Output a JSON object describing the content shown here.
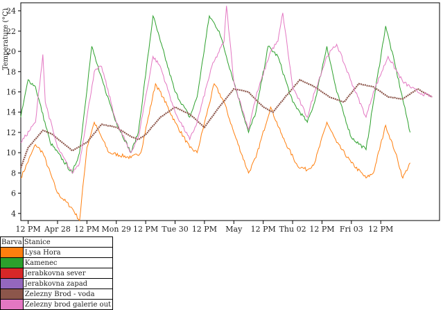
{
  "chart_data": {
    "type": "line",
    "title": "",
    "xlabel": "",
    "ylabel": "Temperature (°C)",
    "ylim": [
      3.3,
      24.8
    ],
    "yticks": [
      4,
      6,
      8,
      10,
      12,
      14,
      16,
      18,
      20,
      22,
      24
    ],
    "xlim": [
      "2013-04-27T09:00",
      "2013-05-04T12:00"
    ],
    "xticks": [
      {
        "t": "2013-04-27T12:00",
        "label": "12 PM"
      },
      {
        "t": "2013-04-28T00:00",
        "label": "Apr 28"
      },
      {
        "t": "2013-04-28T12:00",
        "label": "12 PM"
      },
      {
        "t": "2013-04-29T00:00",
        "label": "Mon 29"
      },
      {
        "t": "2013-04-29T12:00",
        "label": "12 PM"
      },
      {
        "t": "2013-04-30T00:00",
        "label": "Tue 30"
      },
      {
        "t": "2013-04-30T12:00",
        "label": "12 PM"
      },
      {
        "t": "2013-05-01T00:00",
        "label": "May"
      },
      {
        "t": "2013-05-01T12:00",
        "label": "12 PM"
      },
      {
        "t": "2013-05-02T00:00",
        "label": "Thu 02"
      },
      {
        "t": "2013-05-02T12:00",
        "label": "12 PM"
      },
      {
        "t": "2013-05-03T00:00",
        "label": "Fri 03"
      },
      {
        "t": "2013-05-03T12:00",
        "label": "12 PM"
      }
    ],
    "series": [
      {
        "name": "Lysa Hora",
        "color": "#ff7f0e",
        "points": [
          [
            "2013-04-27T09:00",
            7.5
          ],
          [
            "2013-04-27T15:00",
            10.8
          ],
          [
            "2013-04-27T18:00",
            10.0
          ],
          [
            "2013-04-28T00:00",
            6.0
          ],
          [
            "2013-04-28T06:00",
            4.5
          ],
          [
            "2013-04-28T09:00",
            3.3
          ],
          [
            "2013-04-28T12:00",
            10.5
          ],
          [
            "2013-04-28T15:00",
            13.0
          ],
          [
            "2013-04-28T21:00",
            10.0
          ],
          [
            "2013-04-29T06:00",
            9.5
          ],
          [
            "2013-04-29T10:00",
            10.0
          ],
          [
            "2013-04-29T16:00",
            16.8
          ],
          [
            "2013-04-29T19:00",
            15.5
          ],
          [
            "2013-04-30T00:00",
            13.0
          ],
          [
            "2013-04-30T06:00",
            10.5
          ],
          [
            "2013-04-30T09:00",
            10.0
          ],
          [
            "2013-04-30T16:00",
            16.8
          ],
          [
            "2013-04-30T20:00",
            15.0
          ],
          [
            "2013-05-01T00:00",
            12.0
          ],
          [
            "2013-05-01T06:00",
            8.0
          ],
          [
            "2013-05-01T09:00",
            9.5
          ],
          [
            "2013-05-01T15:00",
            14.5
          ],
          [
            "2013-05-01T20:00",
            11.5
          ],
          [
            "2013-05-02T02:00",
            8.7
          ],
          [
            "2013-05-02T06:00",
            8.3
          ],
          [
            "2013-05-02T09:00",
            9.0
          ],
          [
            "2013-05-02T14:00",
            13.0
          ],
          [
            "2013-05-02T18:00",
            11.0
          ],
          [
            "2013-05-03T00:00",
            9.0
          ],
          [
            "2013-05-03T06:00",
            7.5
          ],
          [
            "2013-05-03T09:00",
            8.0
          ],
          [
            "2013-05-03T14:00",
            12.7
          ],
          [
            "2013-05-03T18:00",
            10.0
          ],
          [
            "2013-05-03T21:00",
            7.5
          ],
          [
            "2013-05-04T00:00",
            9.0
          ]
        ]
      },
      {
        "name": "Kamenec",
        "color": "#2ca02c",
        "points": [
          [
            "2013-04-27T09:00",
            13.5
          ],
          [
            "2013-04-27T12:00",
            17.2
          ],
          [
            "2013-04-27T15:00",
            16.5
          ],
          [
            "2013-04-27T21:00",
            11.0
          ],
          [
            "2013-04-28T06:00",
            8.0
          ],
          [
            "2013-04-28T09:00",
            10.0
          ],
          [
            "2013-04-28T14:00",
            20.5
          ],
          [
            "2013-04-28T17:00",
            18.0
          ],
          [
            "2013-04-29T00:00",
            13.0
          ],
          [
            "2013-04-29T06:00",
            10.0
          ],
          [
            "2013-04-29T09:00",
            12.0
          ],
          [
            "2013-04-29T15:00",
            23.5
          ],
          [
            "2013-04-29T18:00",
            21.0
          ],
          [
            "2013-04-30T00:00",
            16.0
          ],
          [
            "2013-04-30T06:00",
            13.5
          ],
          [
            "2013-04-30T09:00",
            15.5
          ],
          [
            "2013-04-30T14:00",
            23.5
          ],
          [
            "2013-04-30T18:00",
            22.0
          ],
          [
            "2013-05-01T00:00",
            17.0
          ],
          [
            "2013-05-01T06:00",
            12.0
          ],
          [
            "2013-05-01T09:00",
            14.0
          ],
          [
            "2013-05-01T14:00",
            20.5
          ],
          [
            "2013-05-01T18:00",
            19.5
          ],
          [
            "2013-05-02T00:00",
            15.0
          ],
          [
            "2013-05-02T06:00",
            13.0
          ],
          [
            "2013-05-02T09:00",
            15.0
          ],
          [
            "2013-05-02T14:00",
            20.5
          ],
          [
            "2013-05-02T18:00",
            16.0
          ],
          [
            "2013-05-03T00:00",
            11.5
          ],
          [
            "2013-05-03T06:00",
            10.3
          ],
          [
            "2013-05-03T09:00",
            15.0
          ],
          [
            "2013-05-03T14:00",
            22.5
          ],
          [
            "2013-05-03T18:00",
            18.5
          ],
          [
            "2013-05-04T00:00",
            12.0
          ]
        ]
      },
      {
        "name": "Jerabkovna sever",
        "color": "#d62728",
        "points": []
      },
      {
        "name": "Jerabkovna zapad",
        "color": "#9467bd",
        "points": []
      },
      {
        "name": "Zelezny Brod - voda",
        "color": "#8c564b",
        "points": [
          [
            "2013-04-27T09:00",
            8.5
          ],
          [
            "2013-04-27T12:00",
            10.5
          ],
          [
            "2013-04-27T18:00",
            12.2
          ],
          [
            "2013-04-27T22:00",
            11.8
          ],
          [
            "2013-04-28T06:00",
            10.2
          ],
          [
            "2013-04-28T12:00",
            11.0
          ],
          [
            "2013-04-28T18:00",
            12.8
          ],
          [
            "2013-04-29T00:00",
            12.5
          ],
          [
            "2013-04-29T06:00",
            11.6
          ],
          [
            "2013-04-29T09:00",
            11.3
          ],
          [
            "2013-04-29T12:00",
            11.8
          ],
          [
            "2013-04-29T18:00",
            13.5
          ],
          [
            "2013-04-30T00:00",
            14.5
          ],
          [
            "2013-04-30T06:00",
            13.8
          ],
          [
            "2013-04-30T12:00",
            12.5
          ],
          [
            "2013-04-30T18:00",
            14.5
          ],
          [
            "2013-05-01T00:00",
            16.3
          ],
          [
            "2013-05-01T06:00",
            16.0
          ],
          [
            "2013-05-01T12:00",
            14.5
          ],
          [
            "2013-05-01T16:00",
            14.0
          ],
          [
            "2013-05-01T21:00",
            15.5
          ],
          [
            "2013-05-02T03:00",
            17.2
          ],
          [
            "2013-05-02T09:00",
            16.5
          ],
          [
            "2013-05-02T15:00",
            15.5
          ],
          [
            "2013-05-02T21:00",
            15.0
          ],
          [
            "2013-05-03T03:00",
            16.8
          ],
          [
            "2013-05-03T09:00",
            16.5
          ],
          [
            "2013-05-03T15:00",
            15.5
          ],
          [
            "2013-05-03T21:00",
            15.3
          ],
          [
            "2013-05-04T03:00",
            16.3
          ],
          [
            "2013-05-04T09:00",
            15.5
          ]
        ]
      },
      {
        "name": "Zelezny brod galerie out",
        "color": "#e377c2",
        "points": [
          [
            "2013-04-27T09:00",
            11.0
          ],
          [
            "2013-04-27T15:00",
            13.0
          ],
          [
            "2013-04-27T18:00",
            19.7
          ],
          [
            "2013-04-27T19:00",
            15.0
          ],
          [
            "2013-04-28T00:00",
            10.5
          ],
          [
            "2013-04-28T06:00",
            8.0
          ],
          [
            "2013-04-28T09:00",
            9.0
          ],
          [
            "2013-04-28T15:00",
            18.0
          ],
          [
            "2013-04-28T18:00",
            18.5
          ],
          [
            "2013-04-29T00:00",
            13.0
          ],
          [
            "2013-04-29T06:00",
            10.0
          ],
          [
            "2013-04-29T09:00",
            11.5
          ],
          [
            "2013-04-29T15:00",
            19.5
          ],
          [
            "2013-04-29T18:00",
            18.5
          ],
          [
            "2013-04-30T00:00",
            14.0
          ],
          [
            "2013-04-30T06:00",
            11.3
          ],
          [
            "2013-04-30T09:00",
            13.0
          ],
          [
            "2013-04-30T15:00",
            18.5
          ],
          [
            "2013-04-30T20:00",
            21.0
          ],
          [
            "2013-04-30T21:00",
            24.5
          ],
          [
            "2013-05-01T00:00",
            17.0
          ],
          [
            "2013-05-01T06:00",
            12.3
          ],
          [
            "2013-05-01T09:00",
            15.5
          ],
          [
            "2013-05-01T15:00",
            20.0
          ],
          [
            "2013-05-01T18:00",
            21.0
          ],
          [
            "2013-05-01T20:00",
            23.8
          ],
          [
            "2013-05-02T00:00",
            16.5
          ],
          [
            "2013-05-02T06:00",
            13.5
          ],
          [
            "2013-05-02T09:00",
            16.0
          ],
          [
            "2013-05-02T14:00",
            19.5
          ],
          [
            "2013-05-02T18:00",
            20.7
          ],
          [
            "2013-05-03T00:00",
            17.0
          ],
          [
            "2013-05-03T06:00",
            13.5
          ],
          [
            "2013-05-03T09:00",
            16.0
          ],
          [
            "2013-05-03T15:00",
            19.5
          ],
          [
            "2013-05-03T21:00",
            17.0
          ],
          [
            "2013-05-04T03:00",
            16.0
          ],
          [
            "2013-05-04T09:00",
            15.5
          ]
        ]
      }
    ],
    "grid": false,
    "legend": "bottom-left table"
  },
  "legend_table": {
    "col_color": "Barva",
    "col_station": "Stanice"
  }
}
